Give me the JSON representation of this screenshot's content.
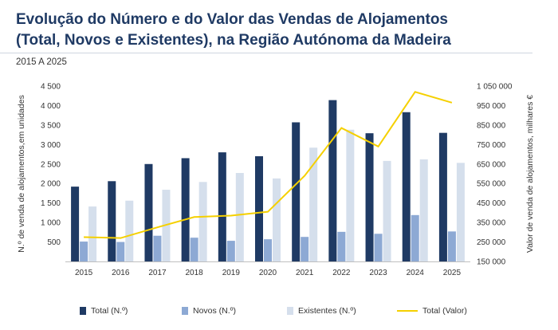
{
  "title_line1": "Evolução do Número e do Valor das Vendas de Alojamentos",
  "title_line2": "(Total, Novos e Existentes), na Região Autónoma da Madeira",
  "subtitle": "2015 A 2025",
  "colors": {
    "total": "#1f3a64",
    "novos": "#8da9d4",
    "existentes": "#d5dfec",
    "valor": "#f5d000"
  },
  "chart_data": {
    "type": "bar",
    "categories": [
      "2015",
      "2016",
      "2017",
      "2018",
      "2019",
      "2020",
      "2021",
      "2022",
      "2023",
      "2024",
      "2025"
    ],
    "series": [
      {
        "name": "Total (N.º)",
        "type": "bar",
        "axis": "left",
        "values": [
          1920,
          2060,
          2500,
          2650,
          2800,
          2700,
          3570,
          4140,
          3290,
          3830,
          3300
        ]
      },
      {
        "name": "Novos (N.º)",
        "type": "bar",
        "axis": "left",
        "values": [
          510,
          500,
          660,
          610,
          530,
          570,
          630,
          760,
          710,
          1190,
          770
        ]
      },
      {
        "name": "Existentes (N.º)",
        "type": "bar",
        "axis": "left",
        "values": [
          1410,
          1560,
          1840,
          2040,
          2270,
          2130,
          2920,
          3380,
          2580,
          2620,
          2530
        ]
      },
      {
        "name": "Total (Valor)",
        "type": "line",
        "axis": "right",
        "values": [
          275000,
          270000,
          325000,
          378000,
          385000,
          405000,
          590000,
          835000,
          740000,
          1020000,
          965000
        ]
      }
    ],
    "ylabel": "N.º de venda de alojamentos,em unidades",
    "y2label": "Valor de venda de alojamentos, milhares €",
    "ylim": [
      0,
      4500
    ],
    "y2lim": [
      150000,
      1050000
    ],
    "yticks": [
      "500",
      "1 000",
      "1 500",
      "2 000",
      "2 500",
      "3 000",
      "3 500",
      "4 000",
      "4 500"
    ],
    "y2ticks": [
      "150 000",
      "250 000",
      "350 000",
      "450 000",
      "550 000",
      "650 000",
      "750 000",
      "850 000",
      "950 000",
      "1 050 000"
    ],
    "legend_position": "bottom"
  }
}
